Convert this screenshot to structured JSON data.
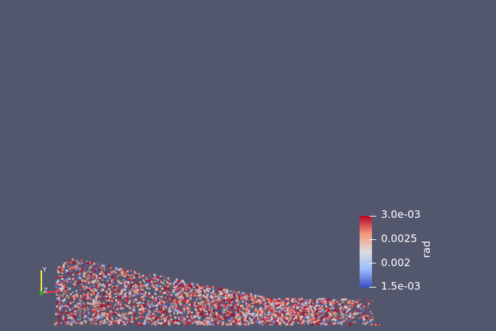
{
  "scalar_bar": {
    "title": "rad",
    "labels": [
      "3.0e-03",
      "0.0025",
      "0.002",
      "1.5e-03"
    ],
    "range": [
      0.0015,
      0.003
    ],
    "colors": {
      "high": "#b40426",
      "mid_high": "#f4987a",
      "mid": "#dddddd",
      "mid_low": "#9abbff",
      "low": "#3b4cc0"
    }
  },
  "orientation_axes": {
    "x_label": "X",
    "y_label": "Y",
    "z_label": "Z",
    "x_color": "#ff3333",
    "y_color": "#ffff33",
    "z_color": "#33aa33"
  },
  "background_color": "#52576e"
}
